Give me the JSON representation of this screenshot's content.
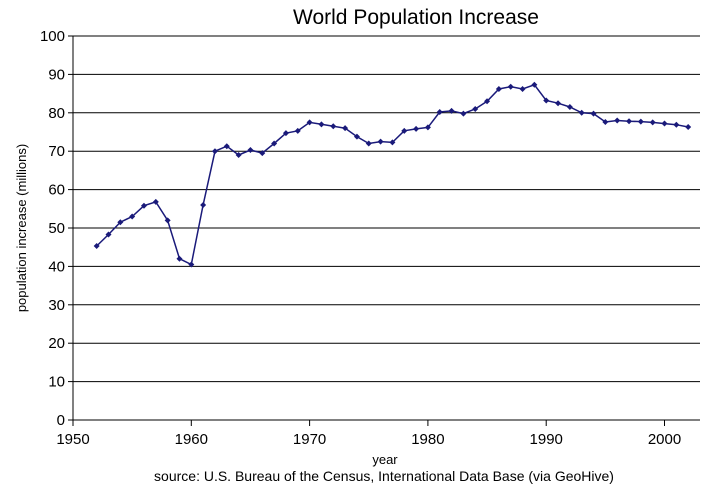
{
  "chart_data": {
    "type": "line",
    "title": "World Population Increase",
    "xlabel": "year",
    "ylabel": "population increase (millions)",
    "source": "source: U.S. Bureau of the Census, International Data Base (via GeoHive)",
    "xlim": [
      1950,
      2003
    ],
    "ylim": [
      0,
      100
    ],
    "x_ticks": [
      1950,
      1960,
      1970,
      1980,
      1990,
      2000
    ],
    "y_ticks": [
      0,
      10,
      20,
      30,
      40,
      50,
      60,
      70,
      80,
      90,
      100
    ],
    "grid": "horizontal",
    "colors": {
      "series": "#1a1a7a",
      "grid": "#000000",
      "axis": "#000000"
    },
    "series": [
      {
        "x": [
          1952,
          1953,
          1954,
          1955,
          1956,
          1957,
          1958,
          1959,
          1960,
          1961,
          1962,
          1963,
          1964,
          1965,
          1966,
          1967,
          1968,
          1969,
          1970,
          1971,
          1972,
          1973,
          1974,
          1975,
          1976,
          1977,
          1978,
          1979,
          1980,
          1981,
          1982,
          1983,
          1984,
          1985,
          1986,
          1987,
          1988,
          1989,
          1990,
          1991,
          1992,
          1993,
          1994,
          1995,
          1996,
          1997,
          1998,
          1999,
          2000,
          2001,
          2002
        ],
        "values": [
          45.3,
          48.3,
          51.5,
          53.0,
          55.8,
          56.8,
          52.0,
          42.0,
          40.5,
          56.0,
          70.0,
          71.3,
          69.0,
          70.3,
          69.5,
          72.0,
          74.7,
          75.3,
          77.5,
          77.0,
          76.5,
          76.0,
          73.8,
          72.0,
          72.5,
          72.3,
          75.3,
          75.8,
          76.2,
          80.2,
          80.5,
          79.8,
          81.0,
          83.0,
          86.2,
          86.8,
          86.2,
          87.3,
          83.2,
          82.5,
          81.5,
          80.0,
          79.8,
          77.6,
          78.0,
          77.8,
          77.7,
          77.5,
          77.2,
          76.9,
          76.3
        ]
      }
    ]
  }
}
